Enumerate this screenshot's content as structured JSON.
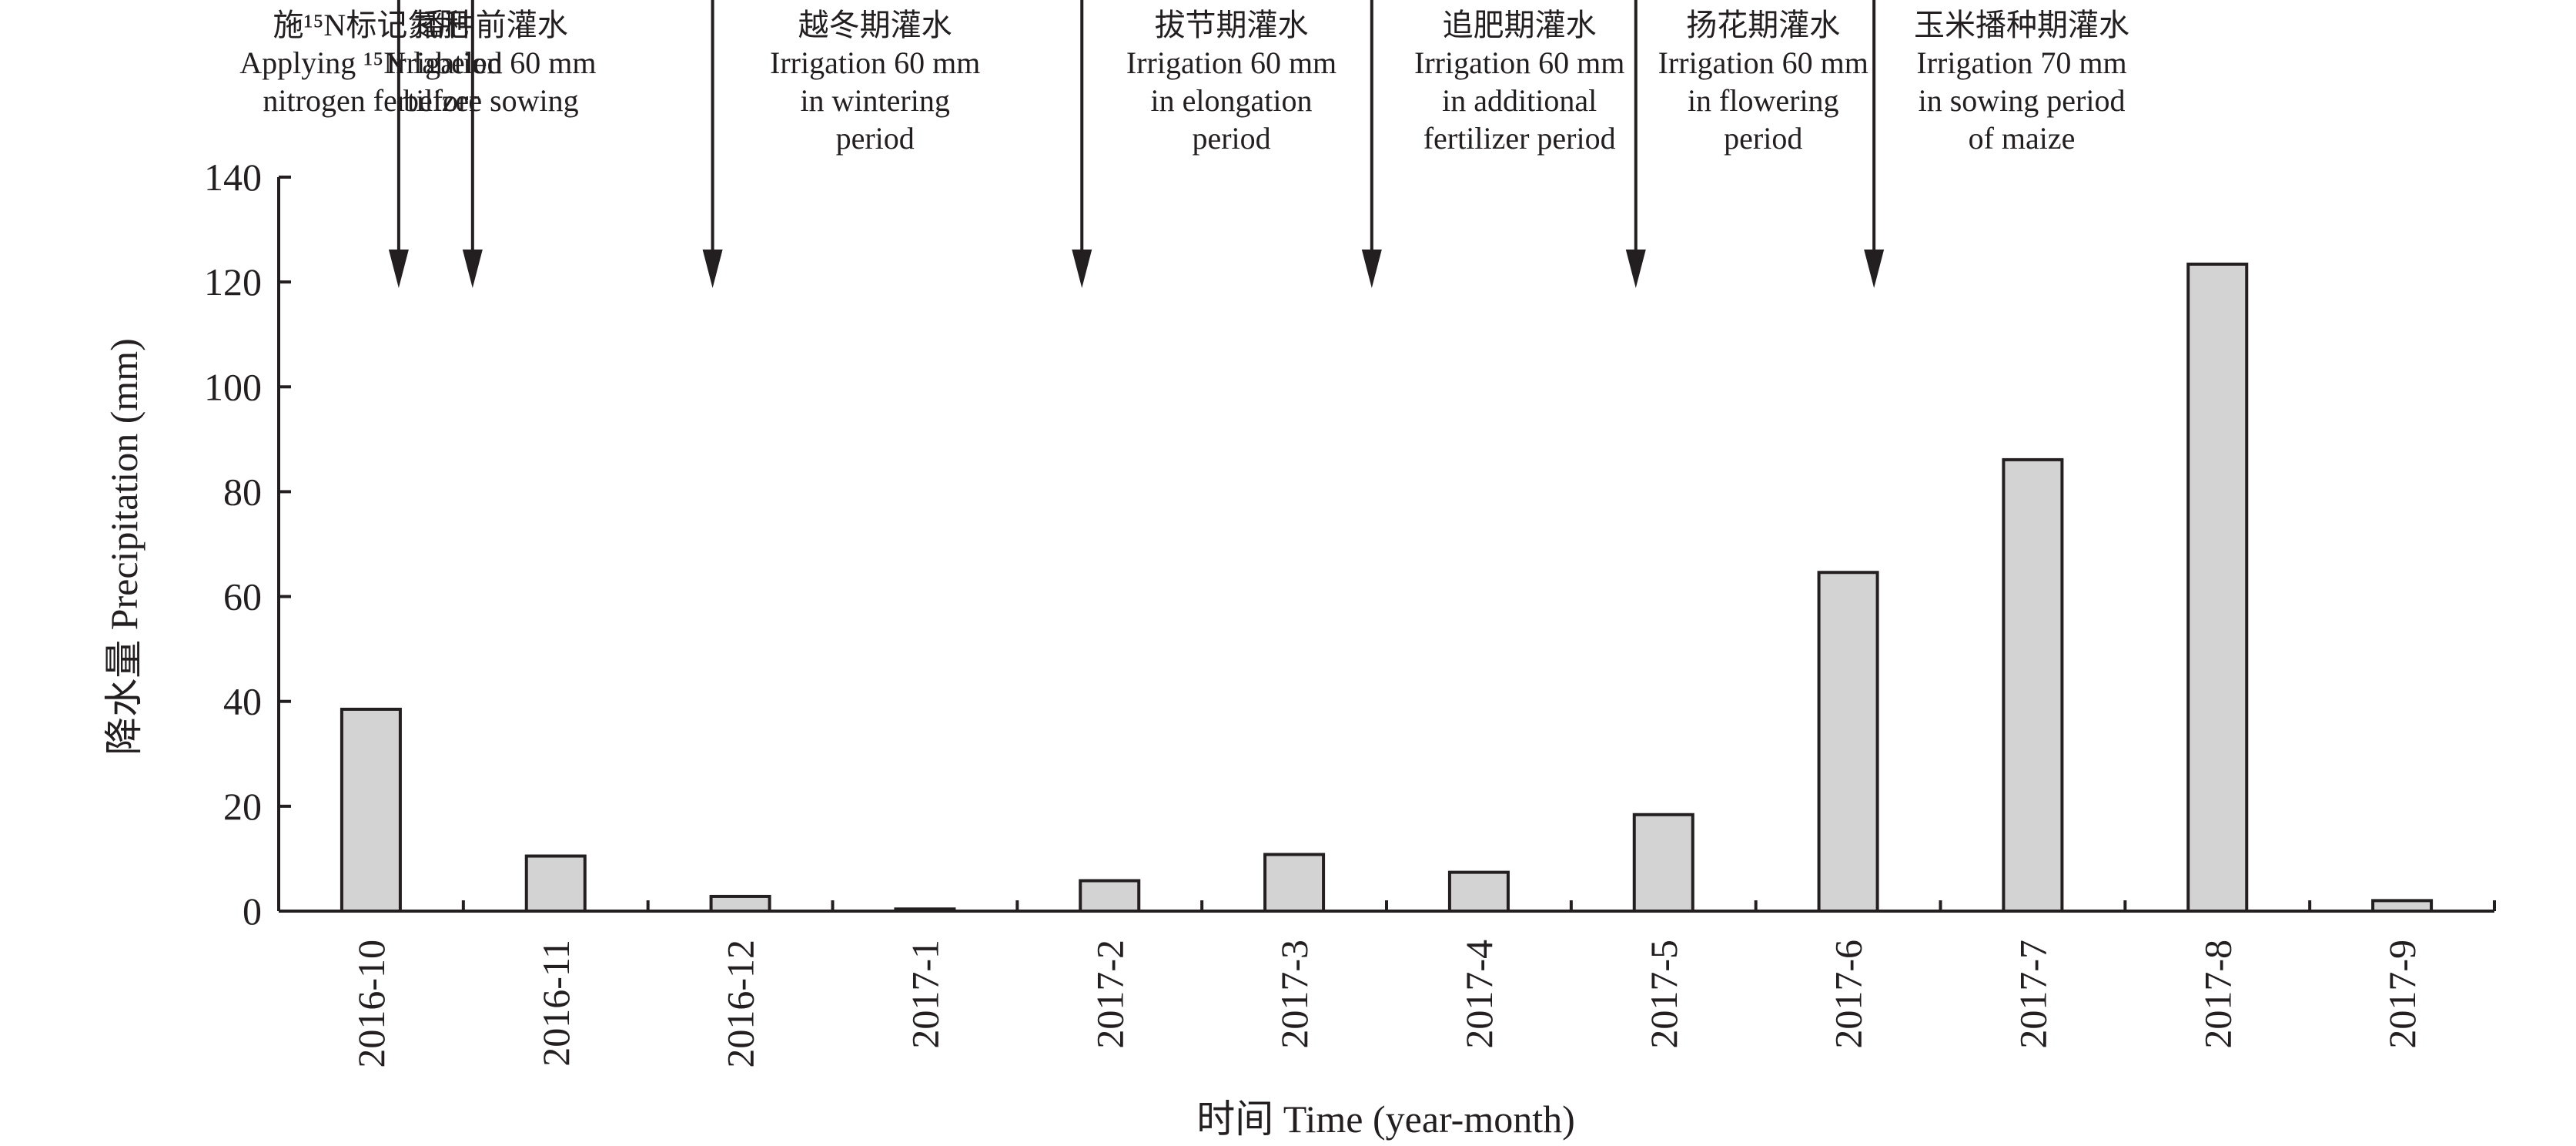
{
  "chart_data": {
    "type": "bar",
    "categories": [
      "2016-10",
      "2016-11",
      "2016-12",
      "2017-1",
      "2017-2",
      "2017-3",
      "2017-4",
      "2017-5",
      "2017-6",
      "2017-7",
      "2017-8",
      "2017-9"
    ],
    "values": [
      38.5,
      10.5,
      2.8,
      0.4,
      5.8,
      10.8,
      7.4,
      18.4,
      64.6,
      86.1,
      123.4,
      2.0
    ],
    "xlabel": "时间 Time (year-month)",
    "ylabel": "降水量 Precipitation (mm)",
    "ylim": [
      0,
      140
    ],
    "yticks": [
      "0",
      "20",
      "40",
      "60",
      "80",
      "100",
      "120",
      "140"
    ],
    "bar_color": "#d3d3d3",
    "annotations": [
      {
        "at": 0.15,
        "lines": [
          "施¹⁵N标记氮肥",
          "Applying ¹⁵N labeled",
          "nitrogen fertilizer"
        ],
        "text_at": 0.0
      },
      {
        "at": 0.55,
        "lines": [
          "播种前灌水",
          "Irrigation 60 mm",
          "before sowing"
        ],
        "text_at": 0.65
      },
      {
        "at": 1.85,
        "lines": [
          "越冬期灌水",
          "Irrigation 60 mm",
          "in wintering",
          "period"
        ],
        "text_at": 2.73
      },
      {
        "at": 3.85,
        "lines": [
          "拔节期灌水",
          "Irrigation 60 mm",
          "in elongation",
          "period"
        ],
        "text_at": 4.66
      },
      {
        "at": 5.42,
        "lines": [
          "追肥期灌水",
          "Irrigation 60 mm",
          "in additional",
          "fertilizer period"
        ],
        "text_at": 6.22
      },
      {
        "at": 6.85,
        "lines": [
          "扬花期灌水",
          "Irrigation 60 mm",
          "in flowering",
          "period"
        ],
        "text_at": 7.54
      },
      {
        "at": 8.14,
        "lines": [
          "玉米播种期灌水",
          "Irrigation 70 mm",
          "in sowing period",
          "of maize"
        ],
        "text_at": 8.94
      }
    ]
  }
}
